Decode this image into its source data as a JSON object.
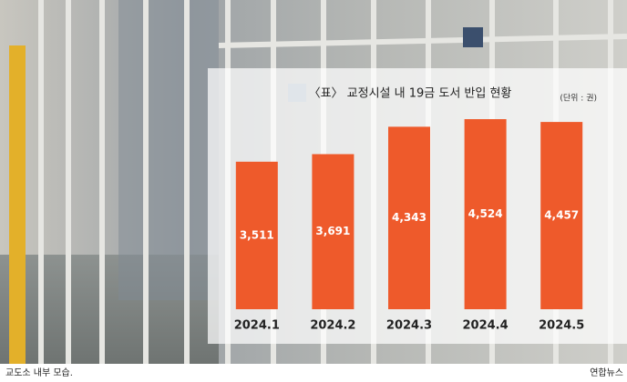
{
  "chart_data": {
    "type": "bar",
    "title": "〈표〉 교정시설 내 19금 도서 반입 현황",
    "unit": "(단위 : 권)",
    "categories": [
      "2024.1",
      "2024.2",
      "2024.3",
      "2024.4",
      "2024.5"
    ],
    "values": [
      3511,
      3691,
      4343,
      4524,
      4457
    ],
    "value_labels": [
      "3,511",
      "3,691",
      "4,343",
      "4,524",
      "4,457"
    ],
    "color": "#ee5a2b"
  },
  "caption": "교도소 내부 모습.",
  "credit": "연합뉴스"
}
